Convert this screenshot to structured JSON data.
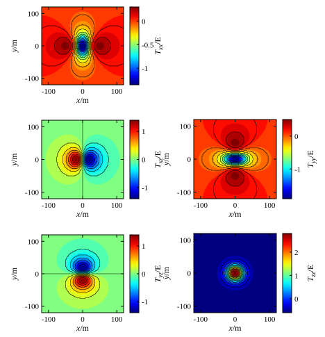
{
  "chart_data": [
    {
      "type": "heatmap",
      "component": "Txx",
      "pattern": "xx",
      "colorbar_label_main": "T",
      "colorbar_label_sub": "xx",
      "colorbar_label_tail": "/E",
      "xlabel_main": "x",
      "xlabel_tail": "/m",
      "ylabel_main": "y",
      "ylabel_tail": "/m",
      "xlim": [
        -120,
        120
      ],
      "ylim": [
        -120,
        120
      ],
      "xticks": [
        "-100",
        "0",
        "100"
      ],
      "yticks": [
        "100",
        "0",
        "-100"
      ],
      "crange": [
        -1.35,
        0.3
      ],
      "cticks": [
        {
          "v": 0,
          "label": "0"
        },
        {
          "v": -0.5,
          "label": "-0.5"
        },
        {
          "v": -1,
          "label": "-1"
        }
      ]
    },
    {
      "type": "heatmap",
      "component": "Txz",
      "pattern": "xz",
      "colorbar_label_main": "T",
      "colorbar_label_sub": "xz",
      "colorbar_label_tail": "/E",
      "xlabel_main": "x",
      "xlabel_tail": "/m",
      "ylabel_main": "y",
      "ylabel_tail": "/m",
      "xlim": [
        -120,
        120
      ],
      "ylim": [
        -120,
        120
      ],
      "xticks": [
        "-100",
        "0",
        "100"
      ],
      "yticks": [
        "100",
        "0",
        "-100"
      ],
      "crange": [
        -1.4,
        1.4
      ],
      "cticks": [
        {
          "v": 1,
          "label": "1"
        },
        {
          "v": 0,
          "label": "0"
        },
        {
          "v": -1,
          "label": "-1"
        }
      ]
    },
    {
      "type": "heatmap",
      "component": "Tyy",
      "pattern": "yy",
      "colorbar_label_main": "T",
      "colorbar_label_sub": "yy",
      "colorbar_label_tail": "/E",
      "xlabel_main": "x",
      "xlabel_tail": "/m",
      "ylabel_main": "y",
      "ylabel_tail": "/m",
      "xlim": [
        -120,
        120
      ],
      "ylim": [
        -120,
        120
      ],
      "xticks": [
        "-100",
        "0",
        "100"
      ],
      "yticks": [
        "100",
        "0",
        "-100"
      ],
      "crange": [
        -1.9,
        0.5
      ],
      "cticks": [
        {
          "v": 0,
          "label": "0"
        },
        {
          "v": -1,
          "label": "-1"
        }
      ]
    },
    {
      "type": "heatmap",
      "component": "Tyz",
      "pattern": "yz",
      "colorbar_label_main": "T",
      "colorbar_label_sub": "yz",
      "colorbar_label_tail": "/E",
      "xlabel_main": "x",
      "xlabel_tail": "/m",
      "ylabel_main": "y",
      "ylabel_tail": "/m",
      "xlim": [
        -120,
        120
      ],
      "ylim": [
        -120,
        120
      ],
      "xticks": [
        "-100",
        "0",
        "100"
      ],
      "yticks": [
        "100",
        "0",
        "-100"
      ],
      "crange": [
        -1.4,
        1.4
      ],
      "cticks": [
        {
          "v": 1,
          "label": "1"
        },
        {
          "v": 0,
          "label": "0"
        },
        {
          "v": -1,
          "label": "-1"
        }
      ]
    },
    {
      "type": "heatmap",
      "component": "Tzz",
      "pattern": "zz",
      "colorbar_label_main": "T",
      "colorbar_label_sub": "zz",
      "colorbar_label_tail": "/E",
      "xlabel_main": "x",
      "xlabel_tail": "/m",
      "ylabel_main": "y",
      "ylabel_tail": "/m",
      "xlim": [
        -120,
        120
      ],
      "ylim": [
        -120,
        120
      ],
      "xticks": [
        "-100",
        "0",
        "100"
      ],
      "yticks": [
        "100",
        "0",
        "-100"
      ],
      "crange": [
        -0.6,
        2.8
      ],
      "cticks": [
        {
          "v": 2,
          "label": "2"
        },
        {
          "v": 1,
          "label": "1"
        },
        {
          "v": 0,
          "label": "0"
        }
      ]
    }
  ]
}
